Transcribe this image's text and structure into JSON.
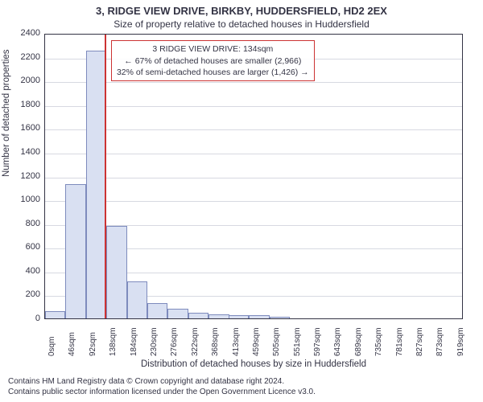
{
  "chart": {
    "type": "histogram",
    "title_line1": "3, RIDGE VIEW DRIVE, BIRKBY, HUDDERSFIELD, HD2 2EX",
    "title_line2": "Size of property relative to detached houses in Huddersfield",
    "ylabel": "Number of detached properties",
    "xlabel": "Distribution of detached houses by size in Huddersfield",
    "background_color": "#ffffff",
    "grid_color": "#d7d9e1",
    "axis_color": "#333344",
    "text_color": "#333344",
    "bar_fill": "#d9e0f2",
    "bar_stroke": "#7e8bbd",
    "marker_color": "#cc3333",
    "title_fontsize": 13,
    "subtitle_fontsize": 12,
    "label_fontsize": 11.5,
    "tick_fontsize": 11,
    "annotation_fontsize": 10.5,
    "ylim": [
      0,
      2400
    ],
    "ytick_step": 200,
    "xtick_labels": [
      "0sqm",
      "46sqm",
      "92sqm",
      "138sqm",
      "184sqm",
      "230sqm",
      "276sqm",
      "322sqm",
      "368sqm",
      "413sqm",
      "459sqm",
      "505sqm",
      "551sqm",
      "597sqm",
      "643sqm",
      "689sqm",
      "735sqm",
      "781sqm",
      "827sqm",
      "873sqm",
      "919sqm"
    ],
    "xtick_step_sqm": 46,
    "xmax_sqm": 942,
    "bar_width_sqm": 46,
    "bars": [
      {
        "x_sqm": 0,
        "value": 60
      },
      {
        "x_sqm": 46,
        "value": 1130
      },
      {
        "x_sqm": 92,
        "value": 2250
      },
      {
        "x_sqm": 138,
        "value": 780
      },
      {
        "x_sqm": 184,
        "value": 310
      },
      {
        "x_sqm": 230,
        "value": 130
      },
      {
        "x_sqm": 276,
        "value": 80
      },
      {
        "x_sqm": 322,
        "value": 50
      },
      {
        "x_sqm": 368,
        "value": 35
      },
      {
        "x_sqm": 413,
        "value": 30
      },
      {
        "x_sqm": 459,
        "value": 25
      },
      {
        "x_sqm": 505,
        "value": 15
      }
    ],
    "marker_x_sqm": 134,
    "annotation": {
      "line1": "3 RIDGE VIEW DRIVE: 134sqm",
      "line2": "← 67% of detached houses are smaller (2,966)",
      "line3": "32% of semi-detached houses are larger (1,426) →",
      "box_border_color": "#cc3333"
    }
  },
  "footer": {
    "line1": "Contains HM Land Registry data © Crown copyright and database right 2024.",
    "line2": "Contains public sector information licensed under the Open Government Licence v3.0."
  }
}
